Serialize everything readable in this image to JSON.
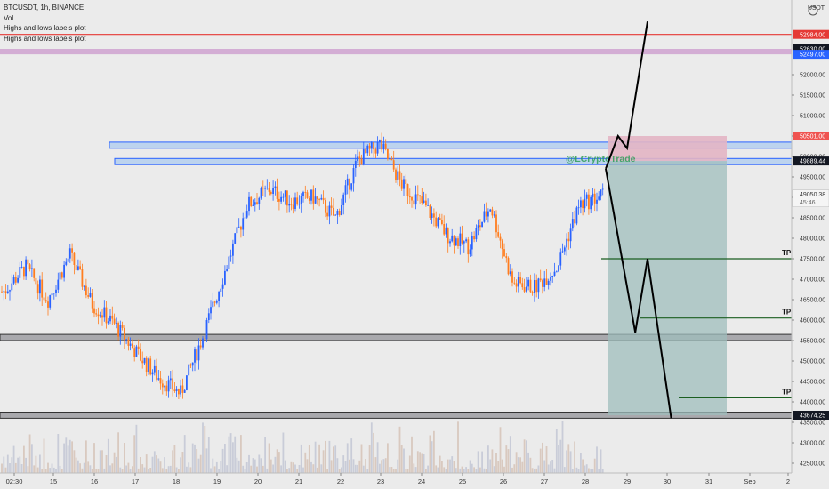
{
  "header": {
    "symbol_line": "BTCUSDT, 1h, BINANCE",
    "indicators": [
      "Vol",
      "Highs and lows labels plot",
      "Highs and lows labels plot"
    ]
  },
  "price_axis": {
    "currency": "USDT",
    "ticks": [
      "52000.00",
      "51500.00",
      "51000.00",
      "50500.00",
      "50000.00",
      "49500.00",
      "49000.00",
      "48500.00",
      "48000.00",
      "47500.00",
      "47000.00",
      "46500.00",
      "46000.00",
      "45500.00",
      "45000.00",
      "44500.00",
      "44000.00",
      "43500.00",
      "43000.00",
      "42500.00"
    ],
    "badges": [
      {
        "label": "52984.00",
        "value": 52984,
        "color": "#e53935"
      },
      {
        "label": "52630.00",
        "value": 52630,
        "color": "#131722"
      },
      {
        "label": "52497.00",
        "value": 52497,
        "color": "#2962ff"
      },
      {
        "label": "50501.00",
        "value": 50501,
        "color": "#ef5350"
      },
      {
        "label": "49889.44",
        "value": 49889.44,
        "color": "#131722"
      },
      {
        "label": "43674.25",
        "value": 43674.25,
        "color": "#131722"
      }
    ],
    "last_price": "49050.38",
    "countdown": "45:46"
  },
  "time_axis": {
    "ticks": [
      "02:30",
      "15",
      "16",
      "17",
      "18",
      "19",
      "20",
      "21",
      "22",
      "23",
      "24",
      "25",
      "26",
      "27",
      "28",
      "29",
      "30",
      "31",
      "Sep",
      "2"
    ]
  },
  "drawings": {
    "watermark": "@LCryptoTrade",
    "tp_labels": [
      "TP 1",
      "TP 2",
      "TP 2"
    ],
    "colors": {
      "up": "#2962ff",
      "down": "#ff7d1f",
      "short_profit": "#9fbdbc",
      "short_loss": "#e3b5c4",
      "resistance_line": "#e53935",
      "zone_fill": "#cfa2d0"
    }
  },
  "chart_data": {
    "type": "candlestick",
    "symbol": "BTCUSDT",
    "timeframe": "1h",
    "exchange": "BINANCE",
    "y_range": [
      42300,
      53800
    ],
    "x_range": [
      "2021-08-14T00:00",
      "2021-09-02T12:00"
    ],
    "price_path": [
      {
        "day": "14",
        "close": 46700
      },
      {
        "day": "15",
        "close": 47300
      },
      {
        "day": "16",
        "close": 46500
      },
      {
        "day": "16",
        "close": 47600
      },
      {
        "day": "17",
        "close": 46400
      },
      {
        "day": "17",
        "close": 45900
      },
      {
        "day": "18",
        "close": 45200
      },
      {
        "day": "18",
        "close": 44600
      },
      {
        "day": "19",
        "close": 44200
      },
      {
        "day": "19",
        "close": 45600
      },
      {
        "day": "20",
        "close": 47200
      },
      {
        "day": "20",
        "close": 48800
      },
      {
        "day": "21",
        "close": 49200
      },
      {
        "day": "21",
        "close": 48900
      },
      {
        "day": "22",
        "close": 49000
      },
      {
        "day": "22",
        "close": 48500
      },
      {
        "day": "23",
        "close": 49900
      },
      {
        "day": "23",
        "close": 50300
      },
      {
        "day": "24",
        "close": 49300
      },
      {
        "day": "24",
        "close": 48800
      },
      {
        "day": "25",
        "close": 48100
      },
      {
        "day": "25",
        "close": 47800
      },
      {
        "day": "26",
        "close": 48800
      },
      {
        "day": "26",
        "close": 46900
      },
      {
        "day": "27",
        "close": 46800
      },
      {
        "day": "27",
        "close": 47300
      },
      {
        "day": "28",
        "close": 48800
      },
      {
        "day": "28",
        "close": 49050
      }
    ],
    "levels": {
      "resistance_line": 52984,
      "resistance_zone": [
        52497,
        52630
      ],
      "supply_zone_top": [
        50200,
        50350
      ],
      "supply_zone_bottom": [
        49800,
        49950
      ],
      "support_zone": [
        45500,
        45650
      ],
      "support_zone_low": [
        43600,
        43750
      ]
    },
    "targets": [
      {
        "label": "TP 1",
        "price": 47500
      },
      {
        "label": "TP 2",
        "price": 46050
      },
      {
        "label": "TP 2",
        "price": 44100
      }
    ],
    "short_position": {
      "entry": 49889.44,
      "stop": 50501,
      "target": 43674.25
    },
    "projection_path": [
      {
        "day": "28.5",
        "price": 49700
      },
      {
        "day": "28.8",
        "price": 50500
      },
      {
        "day": "29",
        "price": 50200
      },
      {
        "day": "29.5",
        "price": 53300
      }
    ],
    "projection_path_bearish": [
      {
        "day": "28.5",
        "price": 49700
      },
      {
        "day": "29.2",
        "price": 45700
      },
      {
        "day": "29.5",
        "price": 47500
      },
      {
        "day": "30.1",
        "price": 43600
      }
    ]
  }
}
